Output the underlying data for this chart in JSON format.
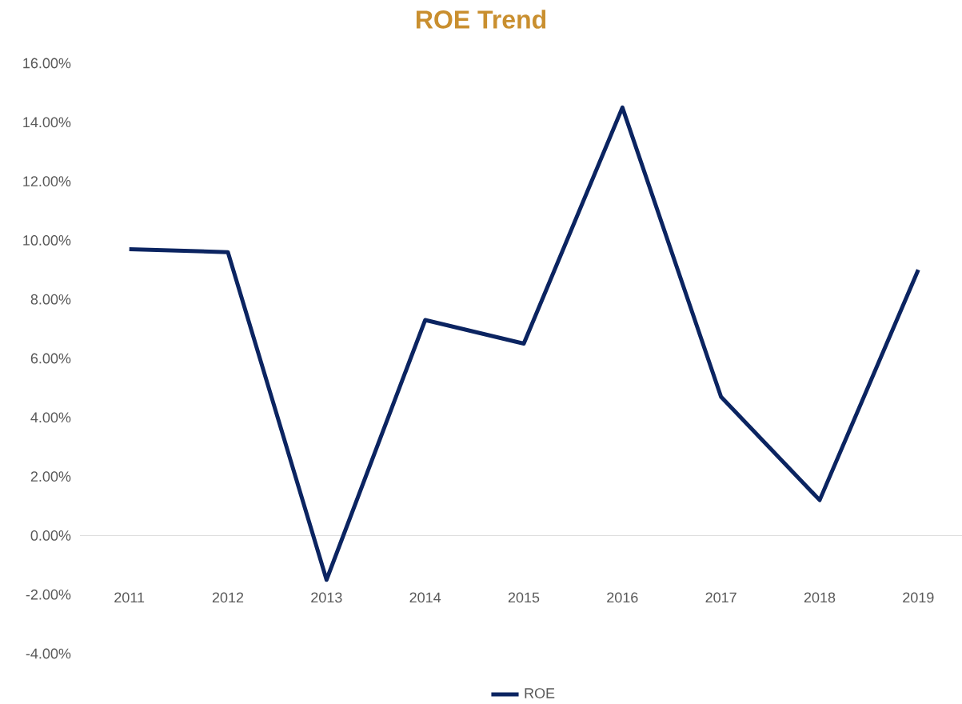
{
  "chart_data": {
    "type": "line",
    "title": "ROE Trend",
    "categories": [
      "2011",
      "2012",
      "2013",
      "2014",
      "2015",
      "2016",
      "2017",
      "2018",
      "2019"
    ],
    "series": [
      {
        "name": "ROE",
        "color": "#0b2461",
        "values": [
          9.7,
          9.6,
          -1.5,
          7.3,
          6.5,
          14.5,
          4.7,
          1.2,
          9.0
        ]
      }
    ],
    "ylim": [
      -4,
      16
    ],
    "yticks": [
      {
        "value": -4,
        "label": "-4.00%"
      },
      {
        "value": -2,
        "label": "-2.00%"
      },
      {
        "value": 0,
        "label": "0.00%"
      },
      {
        "value": 2,
        "label": "2.00%"
      },
      {
        "value": 4,
        "label": "4.00%"
      },
      {
        "value": 6,
        "label": "6.00%"
      },
      {
        "value": 8,
        "label": "8.00%"
      },
      {
        "value": 10,
        "label": "10.00%"
      },
      {
        "value": 12,
        "label": "12.00%"
      },
      {
        "value": 14,
        "label": "14.00%"
      },
      {
        "value": 16,
        "label": "16.00%"
      }
    ],
    "legend": "bottom",
    "marker": "none",
    "line_style": "solid"
  }
}
